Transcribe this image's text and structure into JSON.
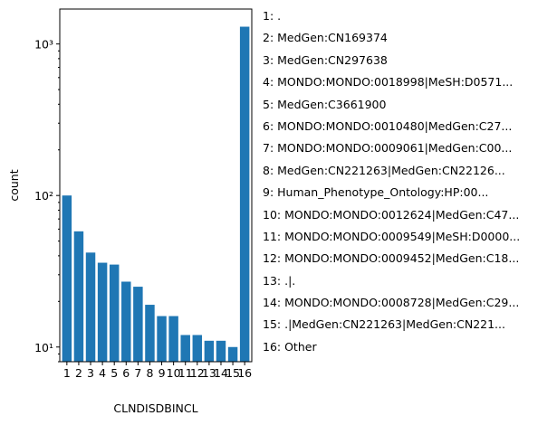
{
  "chart_data": {
    "type": "bar",
    "categories": [
      "1",
      "2",
      "3",
      "4",
      "5",
      "6",
      "7",
      "8",
      "9",
      "10",
      "11",
      "12",
      "13",
      "14",
      "15",
      "16"
    ],
    "values": [
      100,
      58,
      42,
      36,
      35,
      27,
      25,
      19,
      16,
      16,
      12,
      12,
      11,
      11,
      10,
      1300
    ],
    "xlabel": "CLNDISDBINCL",
    "ylabel": "count",
    "yscale": "log",
    "ylim": [
      8,
      1700
    ],
    "y_ticks": [
      {
        "value": 10,
        "label": "10¹"
      },
      {
        "value": 100,
        "label": "10²"
      },
      {
        "value": 1000,
        "label": "10³"
      }
    ],
    "bar_color": "#1f77b4",
    "grid": false,
    "legend_placement": "right",
    "legend": [
      "1: .",
      "2: MedGen:CN169374",
      "3: MedGen:CN297638",
      "4: MONDO:MONDO:0018998|MeSH:D0571...",
      "5: MedGen:C3661900",
      "6: MONDO:MONDO:0010480|MedGen:C27...",
      "7: MONDO:MONDO:0009061|MedGen:C00...",
      "8: MedGen:CN221263|MedGen:CN22126...",
      "9: Human_Phenotype_Ontology:HP:00...",
      "10: MONDO:MONDO:0012624|MedGen:C47...",
      "11: MONDO:MONDO:0009549|MeSH:D0000...",
      "12: MONDO:MONDO:0009452|MedGen:C18...",
      "13: .|.",
      "14: MONDO:MONDO:0008728|MedGen:C29...",
      "15: .|MedGen:CN221263|MedGen:CN221...",
      "16: Other"
    ]
  }
}
